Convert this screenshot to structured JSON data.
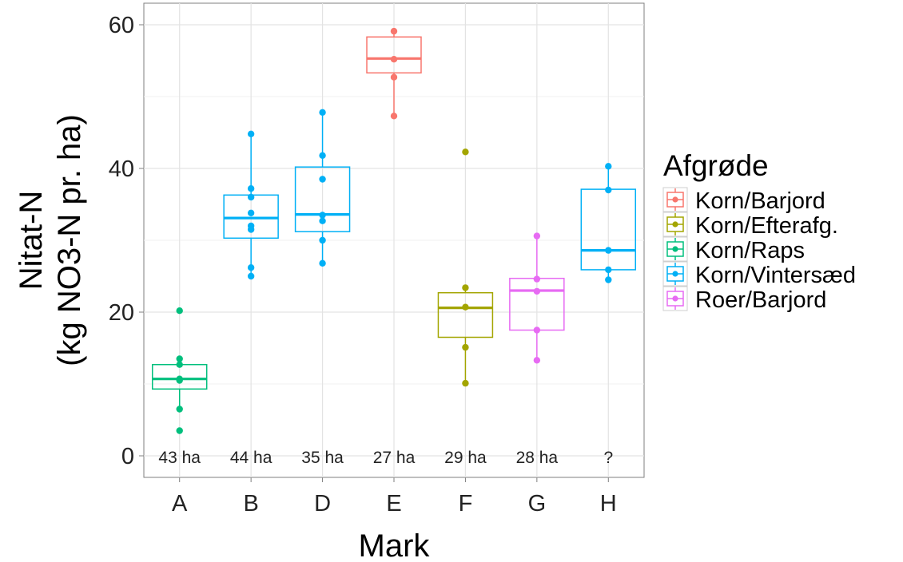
{
  "chart_data": {
    "type": "boxplot",
    "xlabel": "Mark",
    "ylabel_line1": "Nitat-N",
    "ylabel_line2": "(kg NO3-N pr. ha)",
    "ylim": [
      -3,
      63
    ],
    "yticks": [
      0,
      20,
      40,
      60
    ],
    "categories": [
      "A",
      "B",
      "D",
      "E",
      "F",
      "G",
      "H"
    ],
    "legend": {
      "title": "Afgrøde",
      "position": "right",
      "items": [
        {
          "label": "Korn/Barjord",
          "color": "#F8766D"
        },
        {
          "label": "Korn/Efterafg.",
          "color": "#A3A500"
        },
        {
          "label": "Korn/Raps",
          "color": "#00BF7D"
        },
        {
          "label": "Korn/Vintersæd",
          "color": "#00B0F6"
        },
        {
          "label": "Roer/Barjord",
          "color": "#E76BF3"
        }
      ]
    },
    "grid": true,
    "series": [
      {
        "category": "A",
        "group": "Korn/Raps",
        "color": "#00BF7D",
        "area_label": "43 ha",
        "box": {
          "whisker_low": 6.5,
          "q1": 9.3,
          "median": 10.7,
          "q3": 12.7,
          "whisker_high": 13.5
        },
        "points": [
          20.2,
          13.5,
          12.7,
          10.7,
          10.5,
          6.5,
          3.5
        ]
      },
      {
        "category": "B",
        "group": "Korn/Vintersæd",
        "color": "#00B0F6",
        "area_label": "44 ha",
        "box": {
          "whisker_low": 25.0,
          "q1": 30.3,
          "median": 33.1,
          "q3": 36.3,
          "whisker_high": 44.8
        },
        "points": [
          44.8,
          37.2,
          36.0,
          33.8,
          32.0,
          31.5,
          26.2,
          25.0
        ]
      },
      {
        "category": "D",
        "group": "Korn/Vintersæd",
        "color": "#00B0F6",
        "area_label": "35 ha",
        "box": {
          "whisker_low": 26.8,
          "q1": 31.2,
          "median": 33.6,
          "q3": 40.2,
          "whisker_high": 47.8
        },
        "points": [
          47.8,
          41.8,
          38.5,
          33.5,
          32.7,
          30.0,
          26.8
        ]
      },
      {
        "category": "E",
        "group": "Korn/Barjord",
        "color": "#F8766D",
        "area_label": "27 ha",
        "box": {
          "whisker_low": 47.3,
          "q1": 53.3,
          "median": 55.3,
          "q3": 58.3,
          "whisker_high": 59.1
        },
        "points": [
          59.1,
          55.2,
          52.7,
          47.3
        ]
      },
      {
        "category": "F",
        "group": "Korn/Efterafg.",
        "color": "#A3A500",
        "area_label": "29 ha",
        "box": {
          "whisker_low": 10.1,
          "q1": 16.5,
          "median": 20.6,
          "q3": 22.7,
          "whisker_high": 23.4
        },
        "points": [
          42.3,
          23.4,
          20.7,
          15.1,
          10.1
        ]
      },
      {
        "category": "G",
        "group": "Roer/Barjord",
        "color": "#E76BF3",
        "area_label": "28 ha",
        "box": {
          "whisker_low": 13.3,
          "q1": 17.5,
          "median": 23.0,
          "q3": 24.7,
          "whisker_high": 30.6
        },
        "points": [
          30.6,
          24.6,
          22.9,
          17.5,
          13.3
        ]
      },
      {
        "category": "H",
        "group": "Korn/Vintersæd",
        "color": "#00B0F6",
        "area_label": "?",
        "box": {
          "whisker_low": 24.5,
          "q1": 25.9,
          "median": 28.6,
          "q3": 37.1,
          "whisker_high": 40.3
        },
        "points": [
          40.3,
          37.0,
          28.6,
          25.9,
          24.5
        ]
      }
    ]
  }
}
